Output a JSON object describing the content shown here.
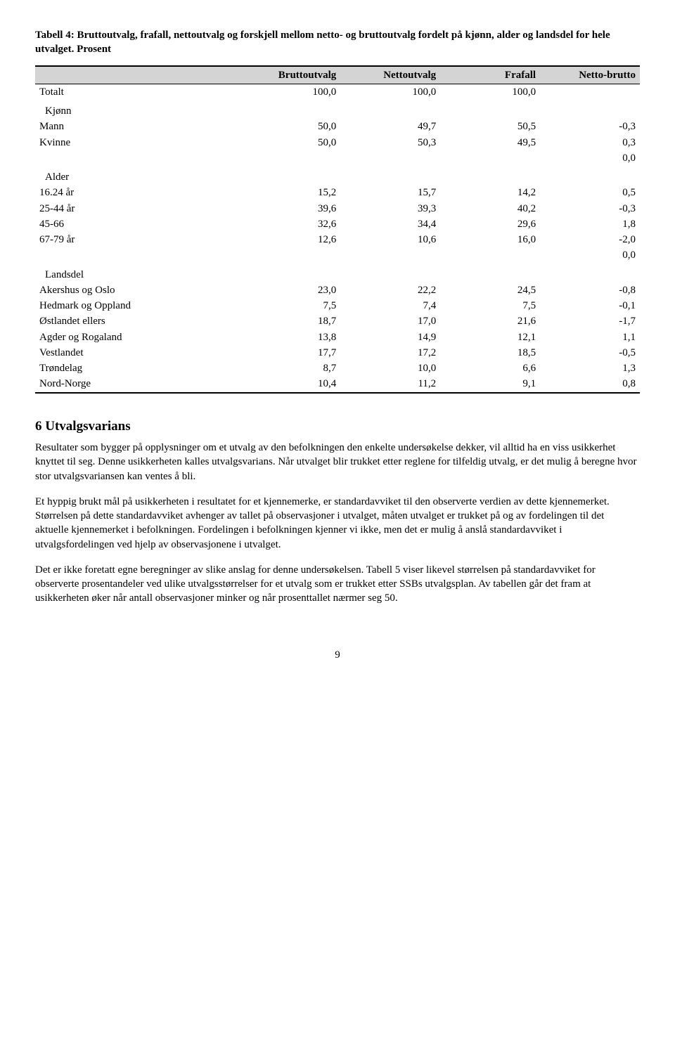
{
  "table": {
    "title": "Tabell 4: Bruttoutvalg, frafall, nettoutvalg og forskjell mellom netto- og bruttoutvalg fordelt på kjønn, alder og landsdel for hele utvalget. Prosent",
    "columns": [
      "",
      "Bruttoutvalg",
      "Nettoutvalg",
      "Frafall",
      "Netto-brutto"
    ],
    "rows": [
      {
        "label": "Totalt",
        "v": [
          "100,0",
          "100,0",
          "100,0",
          ""
        ],
        "section": false
      },
      {
        "label": "Kjønn",
        "v": [
          "",
          "",
          "",
          ""
        ],
        "section": true
      },
      {
        "label": "Mann",
        "v": [
          "50,0",
          "49,7",
          "50,5",
          "-0,3"
        ],
        "section": false
      },
      {
        "label": "Kvinne",
        "v": [
          "50,0",
          "50,3",
          "49,5",
          "0,3"
        ],
        "section": false
      },
      {
        "label": "",
        "v": [
          "",
          "",
          "",
          "0,0"
        ],
        "section": false
      },
      {
        "label": "Alder",
        "v": [
          "",
          "",
          "",
          ""
        ],
        "section": true
      },
      {
        "label": "16.24 år",
        "v": [
          "15,2",
          "15,7",
          "14,2",
          "0,5"
        ],
        "section": false
      },
      {
        "label": "25-44 år",
        "v": [
          "39,6",
          "39,3",
          "40,2",
          "-0,3"
        ],
        "section": false
      },
      {
        "label": "45-66",
        "v": [
          "32,6",
          "34,4",
          "29,6",
          "1,8"
        ],
        "section": false
      },
      {
        "label": "67-79 år",
        "v": [
          "12,6",
          "10,6",
          "16,0",
          "-2,0"
        ],
        "section": false
      },
      {
        "label": "",
        "v": [
          "",
          "",
          "",
          "0,0"
        ],
        "section": false
      },
      {
        "label": "Landsdel",
        "v": [
          "",
          "",
          "",
          ""
        ],
        "section": true
      },
      {
        "label": "Akershus og Oslo",
        "v": [
          "23,0",
          "22,2",
          "24,5",
          "-0,8"
        ],
        "section": false
      },
      {
        "label": "Hedmark og Oppland",
        "v": [
          "7,5",
          "7,4",
          "7,5",
          "-0,1"
        ],
        "section": false
      },
      {
        "label": "Østlandet ellers",
        "v": [
          "18,7",
          "17,0",
          "21,6",
          "-1,7"
        ],
        "section": false
      },
      {
        "label": "Agder og Rogaland",
        "v": [
          "13,8",
          "14,9",
          "12,1",
          "1,1"
        ],
        "section": false
      },
      {
        "label": "Vestlandet",
        "v": [
          "17,7",
          "17,2",
          "18,5",
          "-0,5"
        ],
        "section": false
      },
      {
        "label": "Trøndelag",
        "v": [
          "8,7",
          "10,0",
          "6,6",
          "1,3"
        ],
        "section": false
      },
      {
        "label": "Nord-Norge",
        "v": [
          "10,4",
          "11,2",
          "9,1",
          "0,8"
        ],
        "section": false
      }
    ]
  },
  "section": {
    "heading": "6   Utvalgsvarians",
    "p1": "Resultater som bygger på opplysninger om et utvalg av den befolkningen den enkelte undersøkelse dekker, vil alltid ha en viss usikkerhet knyttet til seg. Denne usikkerheten kalles utvalgsvarians. Når utvalget blir trukket etter reglene for tilfeldig utvalg, er det mulig å beregne hvor stor utvalgsvariansen kan ventes å bli.",
    "p2": "Et hyppig brukt mål på usikkerheten i resultatet for et kjennemerke, er standardavviket til den observerte verdien av dette kjennemerket. Størrelsen på dette standardavviket avhenger av tallet på observasjoner i utvalget, måten utvalget er trukket på og av fordelingen til det aktuelle kjennemerket i befolkningen. Fordelingen i befolkningen kjenner vi ikke, men det er mulig å anslå standardavviket i utvalgsfordelingen ved hjelp av observasjonene i utvalget.",
    "p3": "Det er ikke foretatt egne beregninger av slike anslag for denne undersøkelsen. Tabell 5 viser likevel størrelsen på standardavviket for observerte prosentandeler ved ulike utvalgsstørrelser for et utvalg som er trukket etter SSBs utvalgsplan. Av tabellen går det fram at usikkerheten øker når antall observasjoner minker og når prosenttallet nærmer seg 50."
  },
  "pagenum": "9"
}
